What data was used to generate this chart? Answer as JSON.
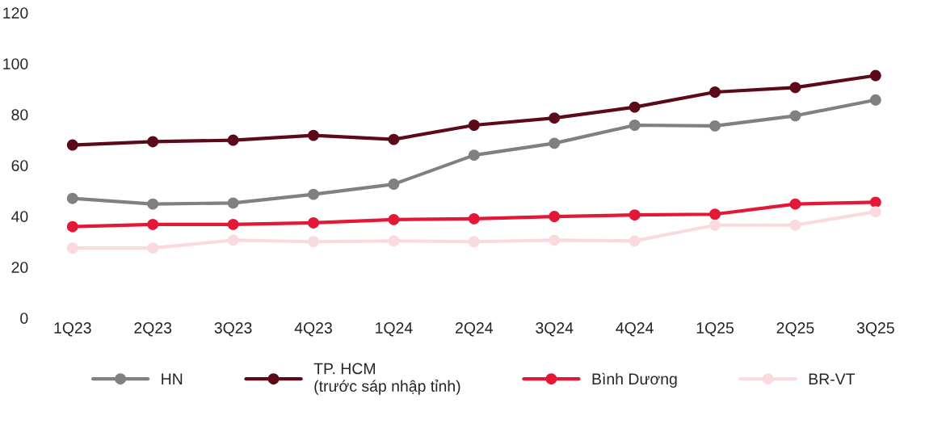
{
  "chart_data": {
    "type": "line",
    "categories": [
      "1Q23",
      "2Q23",
      "3Q23",
      "4Q23",
      "1Q24",
      "2Q24",
      "3Q24",
      "4Q24",
      "1Q25",
      "2Q25",
      "3Q25"
    ],
    "series": [
      {
        "name": "HN",
        "color": "#808080",
        "values": [
          47.0,
          44.8,
          45.2,
          48.6,
          52.6,
          64.0,
          68.7,
          75.8,
          75.5,
          79.5,
          85.7
        ]
      },
      {
        "name": "TP. HCM\n(trước sáp nhập tỉnh)",
        "color": "#5c0a1a",
        "values": [
          68.0,
          69.3,
          69.9,
          71.8,
          70.2,
          75.8,
          78.6,
          82.9,
          88.8,
          90.6,
          95.3
        ]
      },
      {
        "name": "Bình Dương",
        "color": "#e31837",
        "values": [
          35.9,
          36.8,
          36.8,
          37.4,
          38.7,
          39.0,
          39.9,
          40.5,
          40.8,
          44.8,
          45.5
        ]
      },
      {
        "name": "BR-VT",
        "color": "#fadadd",
        "values": [
          27.5,
          27.5,
          30.6,
          30.0,
          30.3,
          30.0,
          30.6,
          30.3,
          36.5,
          36.5,
          41.8
        ]
      }
    ],
    "ylim": [
      0,
      120
    ],
    "yticks": [
      0,
      20,
      40,
      60,
      80,
      100,
      120
    ],
    "grid": false,
    "legend": "bottom",
    "marker": "circle",
    "line_style": "solid"
  }
}
